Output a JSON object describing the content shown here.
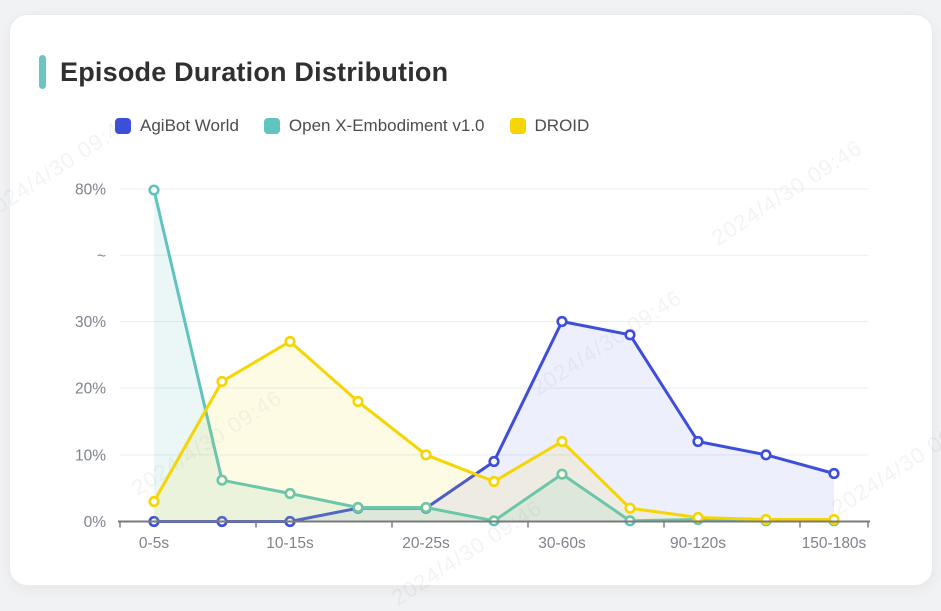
{
  "header": {
    "title": "Episode Duration Distribution"
  },
  "watermark": {
    "text": "2024/4/30 09:46"
  },
  "theme": {
    "accent": "#6CC5BF",
    "title_color": "#303030",
    "legend_color": "#4C4C4C",
    "axis_text": "#7E828C",
    "grid_line": "#E9EDF4",
    "axis_line": "#7A7A7A",
    "page_background": "#F1F2F4",
    "card_background": "#FFFFFF"
  },
  "chart_data": {
    "type": "line",
    "title": "Episode Duration Distribution",
    "categories": [
      "0-5s",
      "",
      "10-15s",
      "",
      "20-25s",
      "",
      "30-60s",
      "",
      "90-120s",
      "",
      "150-180s"
    ],
    "series": [
      {
        "name": "AgiBot World",
        "color": "#3D4EDC",
        "fill_opacity": 0.09,
        "values": [
          0,
          0,
          0,
          2,
          2,
          9,
          30,
          28,
          12,
          10,
          7.2
        ]
      },
      {
        "name": "Open X-Embodiment v1.0",
        "color": "#5EC4BD",
        "fill_opacity": 0.13,
        "values": [
          79.6,
          6.2,
          4.2,
          2.1,
          2.1,
          0.1,
          7.1,
          0.1,
          0.3,
          0.1,
          0.1
        ]
      },
      {
        "name": "DROID",
        "color": "#F5D503",
        "fill_opacity": 0.1,
        "values": [
          3,
          21,
          27,
          18,
          10,
          6,
          12,
          2,
          0.6,
          0.3,
          0.3
        ]
      }
    ],
    "y_axis": {
      "unit": "%",
      "ticks": [
        "0%",
        "10%",
        "20%",
        "30%",
        "~",
        "80%"
      ],
      "tick_values": [
        0,
        10,
        20,
        30,
        "break",
        80
      ],
      "break_between": [
        30,
        80
      ],
      "min": 0,
      "max": 80
    },
    "grid": true,
    "legend_position": "top-left",
    "marker": "hollow-circle"
  }
}
